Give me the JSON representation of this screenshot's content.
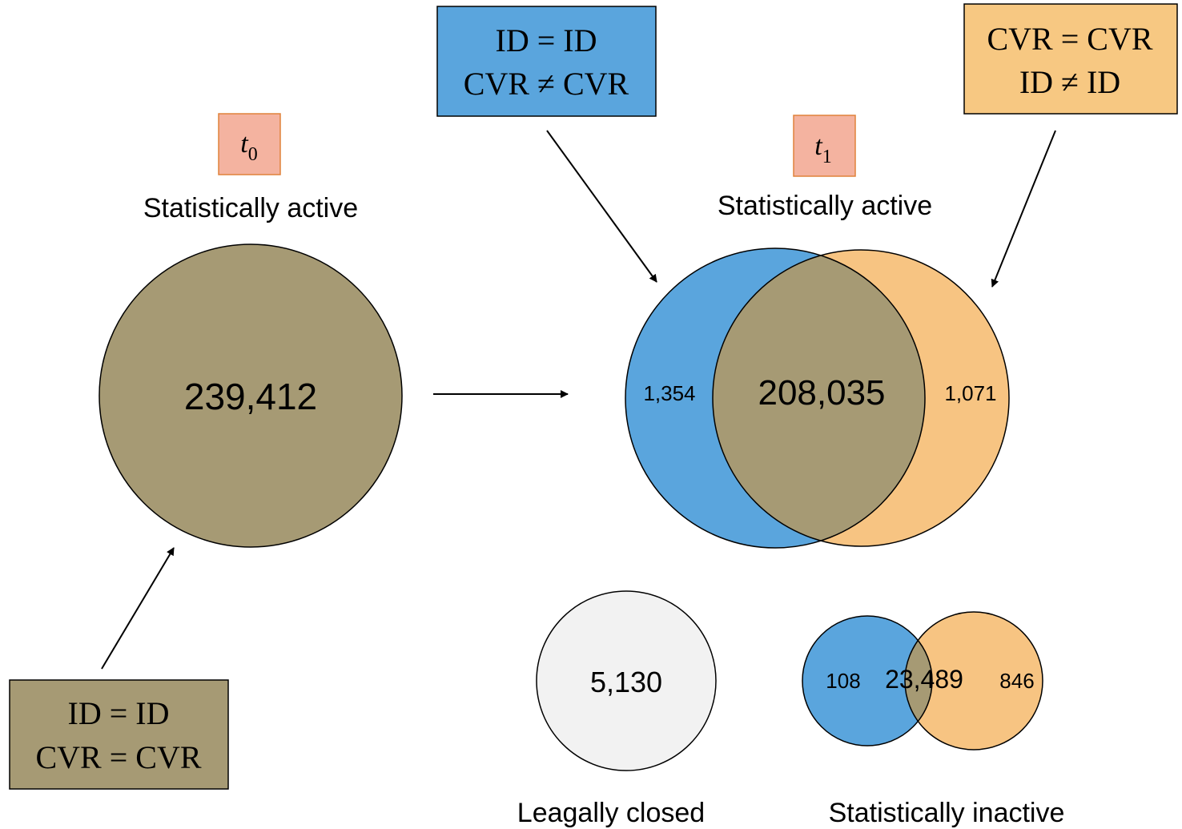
{
  "colors": {
    "tan": "#a69a74",
    "blue": "#5aa5dd",
    "orange": "#f7c482",
    "orange_box": "#f7c882",
    "pink_box": "#f4b3a0",
    "pink_border": "#e0823a",
    "light_gray": "#f2f2f2"
  },
  "t0": {
    "symbol": "t",
    "subscript": "0",
    "label": "Statistically active",
    "count": "239,412"
  },
  "t1": {
    "symbol": "t",
    "subscript": "1",
    "label": "Statistically active",
    "left_only": "1,354",
    "overlap": "208,035",
    "right_only": "1,071"
  },
  "box_id_same_cvr_diff": {
    "line1": "ID = ID",
    "line2": "CVR ≠ CVR"
  },
  "box_cvr_same_id_diff": {
    "line1": "CVR = CVR",
    "line2": "ID ≠ ID"
  },
  "box_both_same": {
    "line1": "ID = ID",
    "line2": "CVR = CVR"
  },
  "legally_closed": {
    "label": "Leagally closed",
    "count": "5,130"
  },
  "inactive": {
    "label": "Statistically inactive",
    "left_only": "108",
    "overlap": "23,489",
    "right_only": "846"
  }
}
